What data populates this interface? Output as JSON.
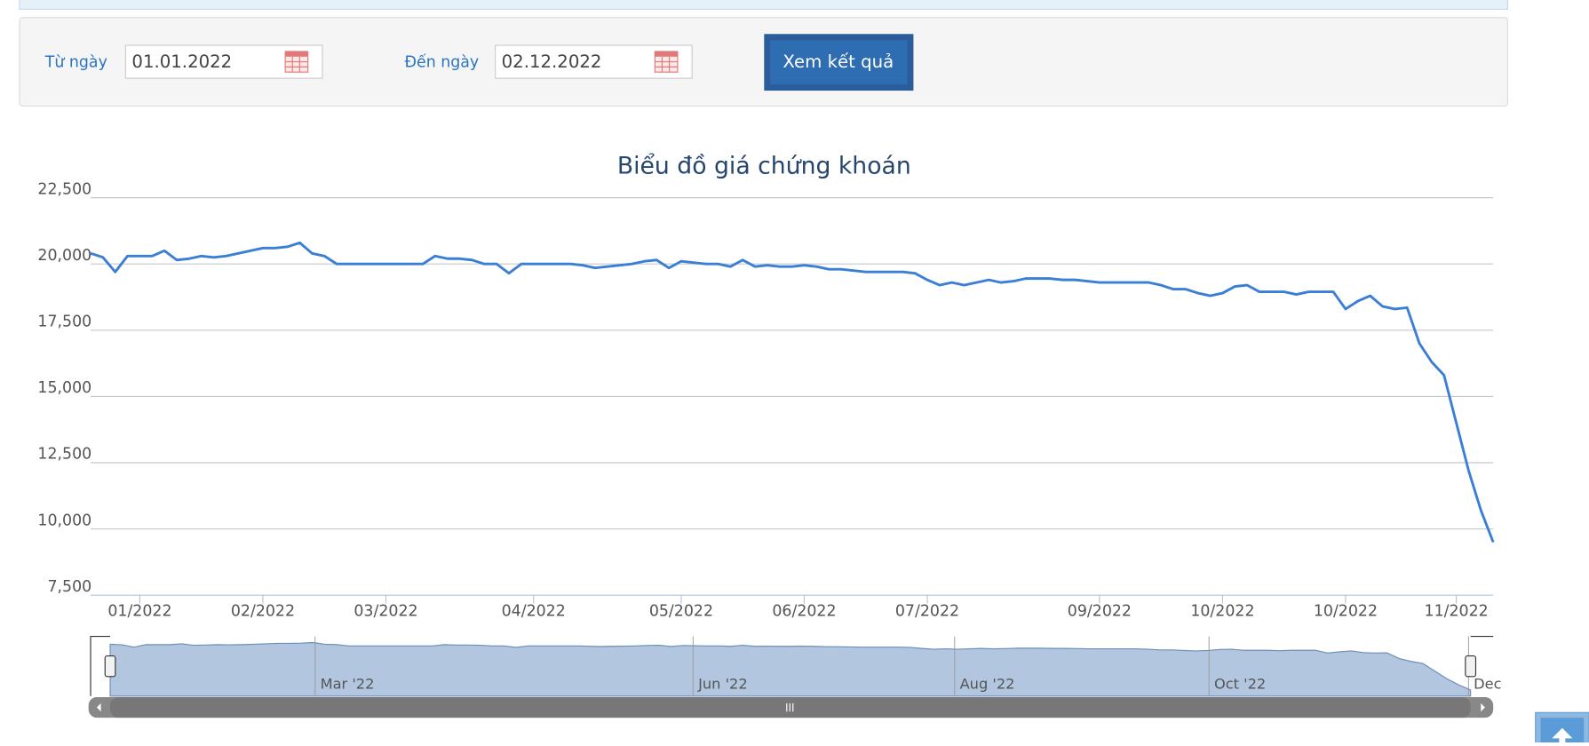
{
  "form": {
    "from_label": "Từ ngày",
    "from_value": "01.01.2022",
    "to_label": "Đến ngày",
    "to_value": "02.12.2022",
    "button": "Xem kết quả"
  },
  "chart_data": {
    "type": "line",
    "title": "Biểu đồ giá chứng khoán",
    "categories": [
      null,
      null,
      null,
      null,
      "01/2022",
      null,
      null,
      null,
      null,
      null,
      null,
      null,
      null,
      null,
      "02/2022",
      null,
      null,
      null,
      null,
      null,
      null,
      null,
      null,
      null,
      "03/2022",
      null,
      null,
      null,
      null,
      null,
      null,
      null,
      null,
      null,
      null,
      null,
      "04/2022",
      null,
      null,
      null,
      null,
      null,
      null,
      null,
      null,
      null,
      null,
      null,
      "05/2022",
      null,
      null,
      null,
      null,
      null,
      null,
      null,
      null,
      null,
      "06/2022",
      null,
      null,
      null,
      null,
      null,
      null,
      null,
      null,
      null,
      "07/2022",
      null,
      null,
      null,
      null,
      null,
      null,
      null,
      null,
      null,
      null,
      null,
      null,
      null,
      "09/2022",
      null,
      null,
      null,
      null,
      null,
      null,
      null,
      null,
      null,
      "10/2022",
      null,
      null,
      null,
      null,
      null,
      null,
      null,
      null,
      null,
      "10/2022",
      null,
      null,
      null,
      null,
      null,
      null,
      null,
      null,
      "11/2022",
      null,
      null,
      null
    ],
    "series": [
      {
        "color": "#3a7fd5",
        "values": [
          20400,
          20250,
          19700,
          20300,
          20300,
          20300,
          20500,
          20150,
          20200,
          20300,
          20250,
          20300,
          20400,
          20500,
          20600,
          20600,
          20650,
          20800,
          20400,
          20300,
          20000,
          20000,
          20000,
          20000,
          20000,
          20000,
          20000,
          20000,
          20300,
          20200,
          20200,
          20150,
          20000,
          20000,
          19650,
          20000,
          20000,
          20000,
          20000,
          20000,
          19950,
          19850,
          19900,
          19950,
          20000,
          20100,
          20150,
          19850,
          20100,
          20050,
          20000,
          20000,
          19900,
          20150,
          19900,
          19950,
          19900,
          19900,
          19950,
          19900,
          19800,
          19800,
          19750,
          19700,
          19700,
          19700,
          19700,
          19650,
          19400,
          19200,
          19300,
          19200,
          19300,
          19400,
          19300,
          19350,
          19450,
          19450,
          19450,
          19400,
          19400,
          19350,
          19300,
          19300,
          19300,
          19300,
          19300,
          19200,
          19050,
          19050,
          18900,
          18800,
          18900,
          19150,
          19200,
          18950,
          18950,
          18950,
          18850,
          18950,
          18950,
          18950,
          18300,
          18600,
          18800,
          18400,
          18300,
          18350,
          17000,
          16300,
          15800,
          14000,
          12200,
          10700,
          9500
        ]
      }
    ],
    "ylim": [
      7500,
      22500
    ],
    "yticks": [
      {
        "value": 7500,
        "label": "7,500"
      },
      {
        "value": 10000,
        "label": "10,000"
      },
      {
        "value": 12500,
        "label": "12,500"
      },
      {
        "value": 15000,
        "label": "15,000"
      },
      {
        "value": 17500,
        "label": "17,500"
      },
      {
        "value": 20000,
        "label": "20,000"
      },
      {
        "value": 22500,
        "label": "22,500"
      }
    ],
    "grid": true,
    "navigator_labels": [
      "Mar '22",
      "Jun '22",
      "Aug '22",
      "Oct '22",
      "Dec"
    ]
  }
}
